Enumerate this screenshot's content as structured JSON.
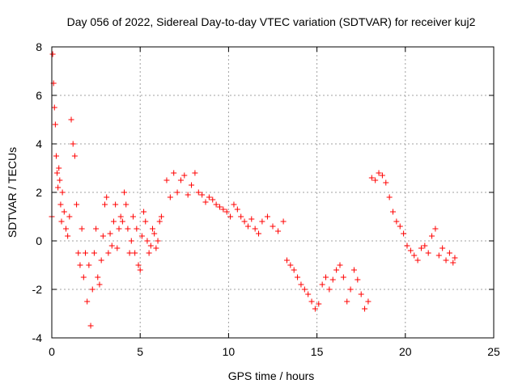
{
  "chart_data": {
    "type": "scatter",
    "title": "Day 056 of 2022, Sidereal Day-to-day VTEC variation (SDTVAR) for receiver kuj2",
    "xlabel": "GPS time / hours",
    "ylabel": "SDTVAR / TECUs",
    "xlim": [
      0,
      25
    ],
    "ylim": [
      -4,
      8
    ],
    "xticks": [
      0,
      5,
      10,
      15,
      20,
      25
    ],
    "yticks": [
      -4,
      -2,
      0,
      2,
      4,
      6,
      8
    ],
    "grid": true,
    "legend": "none",
    "marker": "+",
    "series_color": "#ff0000",
    "series": [
      {
        "name": "SDTVAR",
        "x": [
          0.0,
          0.05,
          0.1,
          0.15,
          0.2,
          0.25,
          0.3,
          0.35,
          0.4,
          0.45,
          0.5,
          0.55,
          0.6,
          0.7,
          0.8,
          0.9,
          1.0,
          1.1,
          1.2,
          1.3,
          1.4,
          1.5,
          1.6,
          1.7,
          1.8,
          1.9,
          2.0,
          2.1,
          2.2,
          2.3,
          2.4,
          2.5,
          2.6,
          2.7,
          2.8,
          2.9,
          3.0,
          3.1,
          3.2,
          3.3,
          3.4,
          3.5,
          3.6,
          3.7,
          3.8,
          3.9,
          4.0,
          4.1,
          4.2,
          4.3,
          4.4,
          4.5,
          4.6,
          4.7,
          4.8,
          4.9,
          5.0,
          5.1,
          5.2,
          5.3,
          5.4,
          5.5,
          5.6,
          5.7,
          5.8,
          5.9,
          6.0,
          6.1,
          6.2,
          6.5,
          6.7,
          6.9,
          7.1,
          7.3,
          7.5,
          7.7,
          7.9,
          8.1,
          8.3,
          8.5,
          8.7,
          8.9,
          9.1,
          9.3,
          9.5,
          9.7,
          9.9,
          10.1,
          10.3,
          10.5,
          10.7,
          10.9,
          11.1,
          11.3,
          11.5,
          11.7,
          11.9,
          12.2,
          12.5,
          12.8,
          13.1,
          13.3,
          13.5,
          13.7,
          13.9,
          14.1,
          14.3,
          14.5,
          14.7,
          14.9,
          15.1,
          15.3,
          15.5,
          15.7,
          15.9,
          16.1,
          16.3,
          16.5,
          16.7,
          16.9,
          17.1,
          17.3,
          17.5,
          17.7,
          17.9,
          18.1,
          18.3,
          18.5,
          18.7,
          18.9,
          19.1,
          19.3,
          19.5,
          19.7,
          19.9,
          20.1,
          20.3,
          20.5,
          20.7,
          20.9,
          21.1,
          21.3,
          21.5,
          21.7,
          21.9,
          22.1,
          22.3,
          22.5,
          22.7,
          22.8
        ],
        "y": [
          1.0,
          7.7,
          6.5,
          5.5,
          4.8,
          3.5,
          2.8,
          2.2,
          3.0,
          2.5,
          1.5,
          0.8,
          2.0,
          1.2,
          0.5,
          0.2,
          1.0,
          5.0,
          4.0,
          3.5,
          1.5,
          -0.5,
          -1.0,
          0.5,
          -1.5,
          -0.5,
          -2.5,
          -1.0,
          -3.5,
          -2.0,
          -0.5,
          0.5,
          -1.5,
          -1.8,
          -0.8,
          0.2,
          1.5,
          1.8,
          -0.5,
          0.3,
          -0.2,
          0.8,
          1.5,
          -0.3,
          0.5,
          1.0,
          0.8,
          2.0,
          1.5,
          0.5,
          -0.5,
          0.0,
          1.0,
          -0.5,
          0.5,
          -1.0,
          -1.2,
          0.2,
          1.2,
          0.8,
          0.0,
          -0.5,
          -0.2,
          0.5,
          0.3,
          -0.3,
          0.0,
          0.8,
          1.0,
          2.5,
          1.8,
          2.8,
          2.0,
          2.5,
          2.7,
          1.9,
          2.3,
          2.8,
          2.0,
          1.9,
          1.6,
          1.8,
          1.7,
          1.5,
          1.4,
          1.3,
          1.2,
          1.0,
          1.5,
          1.3,
          1.0,
          0.8,
          0.6,
          0.9,
          0.5,
          0.3,
          0.8,
          1.0,
          0.6,
          0.4,
          0.8,
          -0.8,
          -1.0,
          -1.2,
          -1.5,
          -1.8,
          -2.0,
          -2.2,
          -2.5,
          -2.8,
          -2.6,
          -1.8,
          -1.5,
          -2.0,
          -1.6,
          -1.2,
          -1.0,
          -1.5,
          -2.5,
          -2.0,
          -1.2,
          -1.6,
          -2.2,
          -2.8,
          -2.5,
          2.6,
          2.5,
          2.8,
          2.7,
          2.4,
          1.8,
          1.2,
          0.8,
          0.6,
          0.3,
          -0.2,
          -0.4,
          -0.6,
          -0.8,
          -0.3,
          -0.2,
          -0.5,
          0.2,
          0.5,
          -0.6,
          -0.3,
          -0.8,
          -0.5,
          -0.9,
          -0.7
        ]
      }
    ]
  }
}
